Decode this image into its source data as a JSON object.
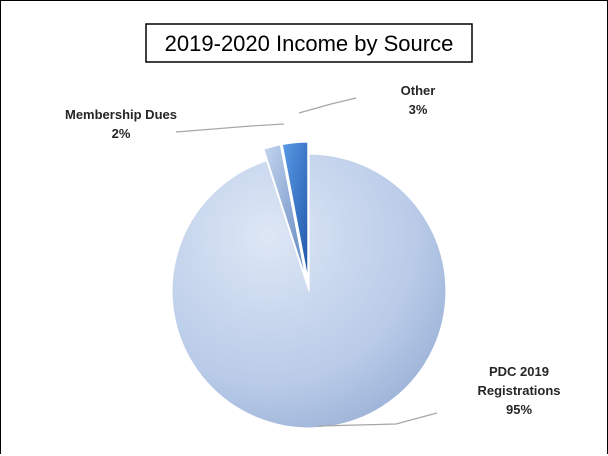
{
  "chart_data": {
    "type": "pie",
    "title": "2019-2020 Income by Source",
    "categories": [
      "PDC 2019 Registrations",
      "Membership Dues",
      "Other"
    ],
    "values": [
      95,
      2,
      3
    ],
    "value_labels": [
      "95%",
      "2%",
      "3%"
    ],
    "category_label_lines": [
      [
        "PDC 2019",
        "Registrations"
      ],
      [
        "Membership Dues"
      ],
      [
        "Other"
      ]
    ],
    "colors": [
      "#b9cbe8",
      "#8eaedb",
      "#2f6fc4"
    ],
    "exploded": [
      false,
      true,
      true
    ],
    "style": "3d-shaded",
    "legend": "none"
  }
}
